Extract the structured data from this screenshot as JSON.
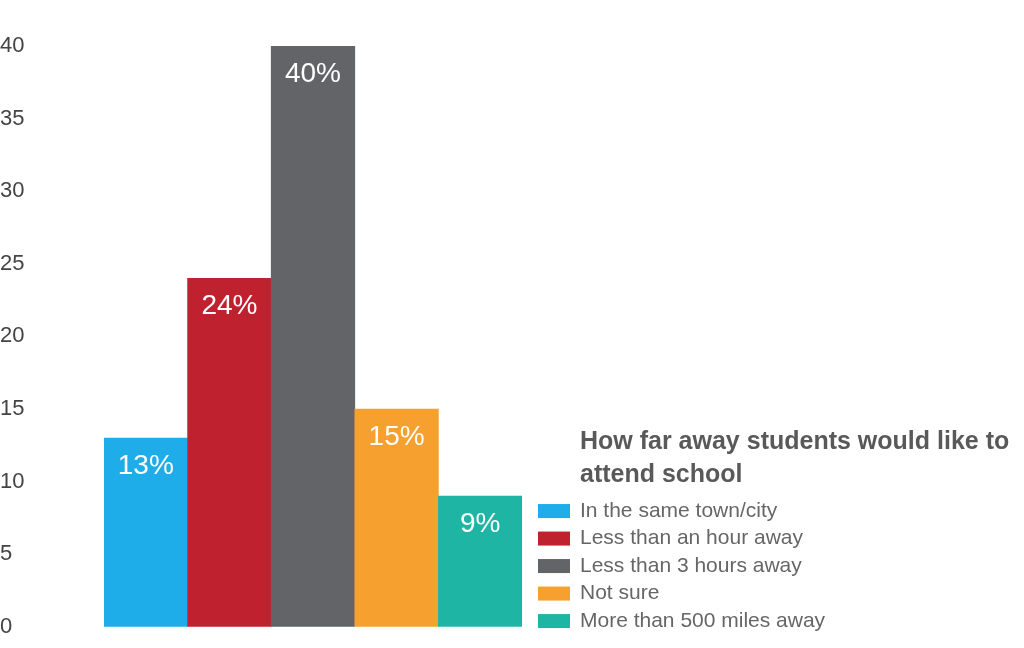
{
  "chart_data": {
    "type": "bar",
    "title": "How far away students would like to attend school",
    "categories": [
      "In the same town/city",
      "Less than an hour away",
      "Less than 3 hours away",
      "Not sure",
      "More than 500 miles away"
    ],
    "values": [
      13,
      24,
      40,
      15,
      9
    ],
    "value_labels": [
      "13%",
      "24%",
      "40%",
      "15%",
      "9%"
    ],
    "colors": [
      "#1fadea",
      "#c0212f",
      "#636467",
      "#f6a030",
      "#1fb5a5"
    ],
    "ylim": [
      0,
      40
    ],
    "yticks": [
      0,
      5,
      10,
      15,
      20,
      25,
      30,
      35,
      40
    ],
    "grid": false,
    "legend": "lower right",
    "data_labels": true,
    "tick_labels": "y"
  }
}
